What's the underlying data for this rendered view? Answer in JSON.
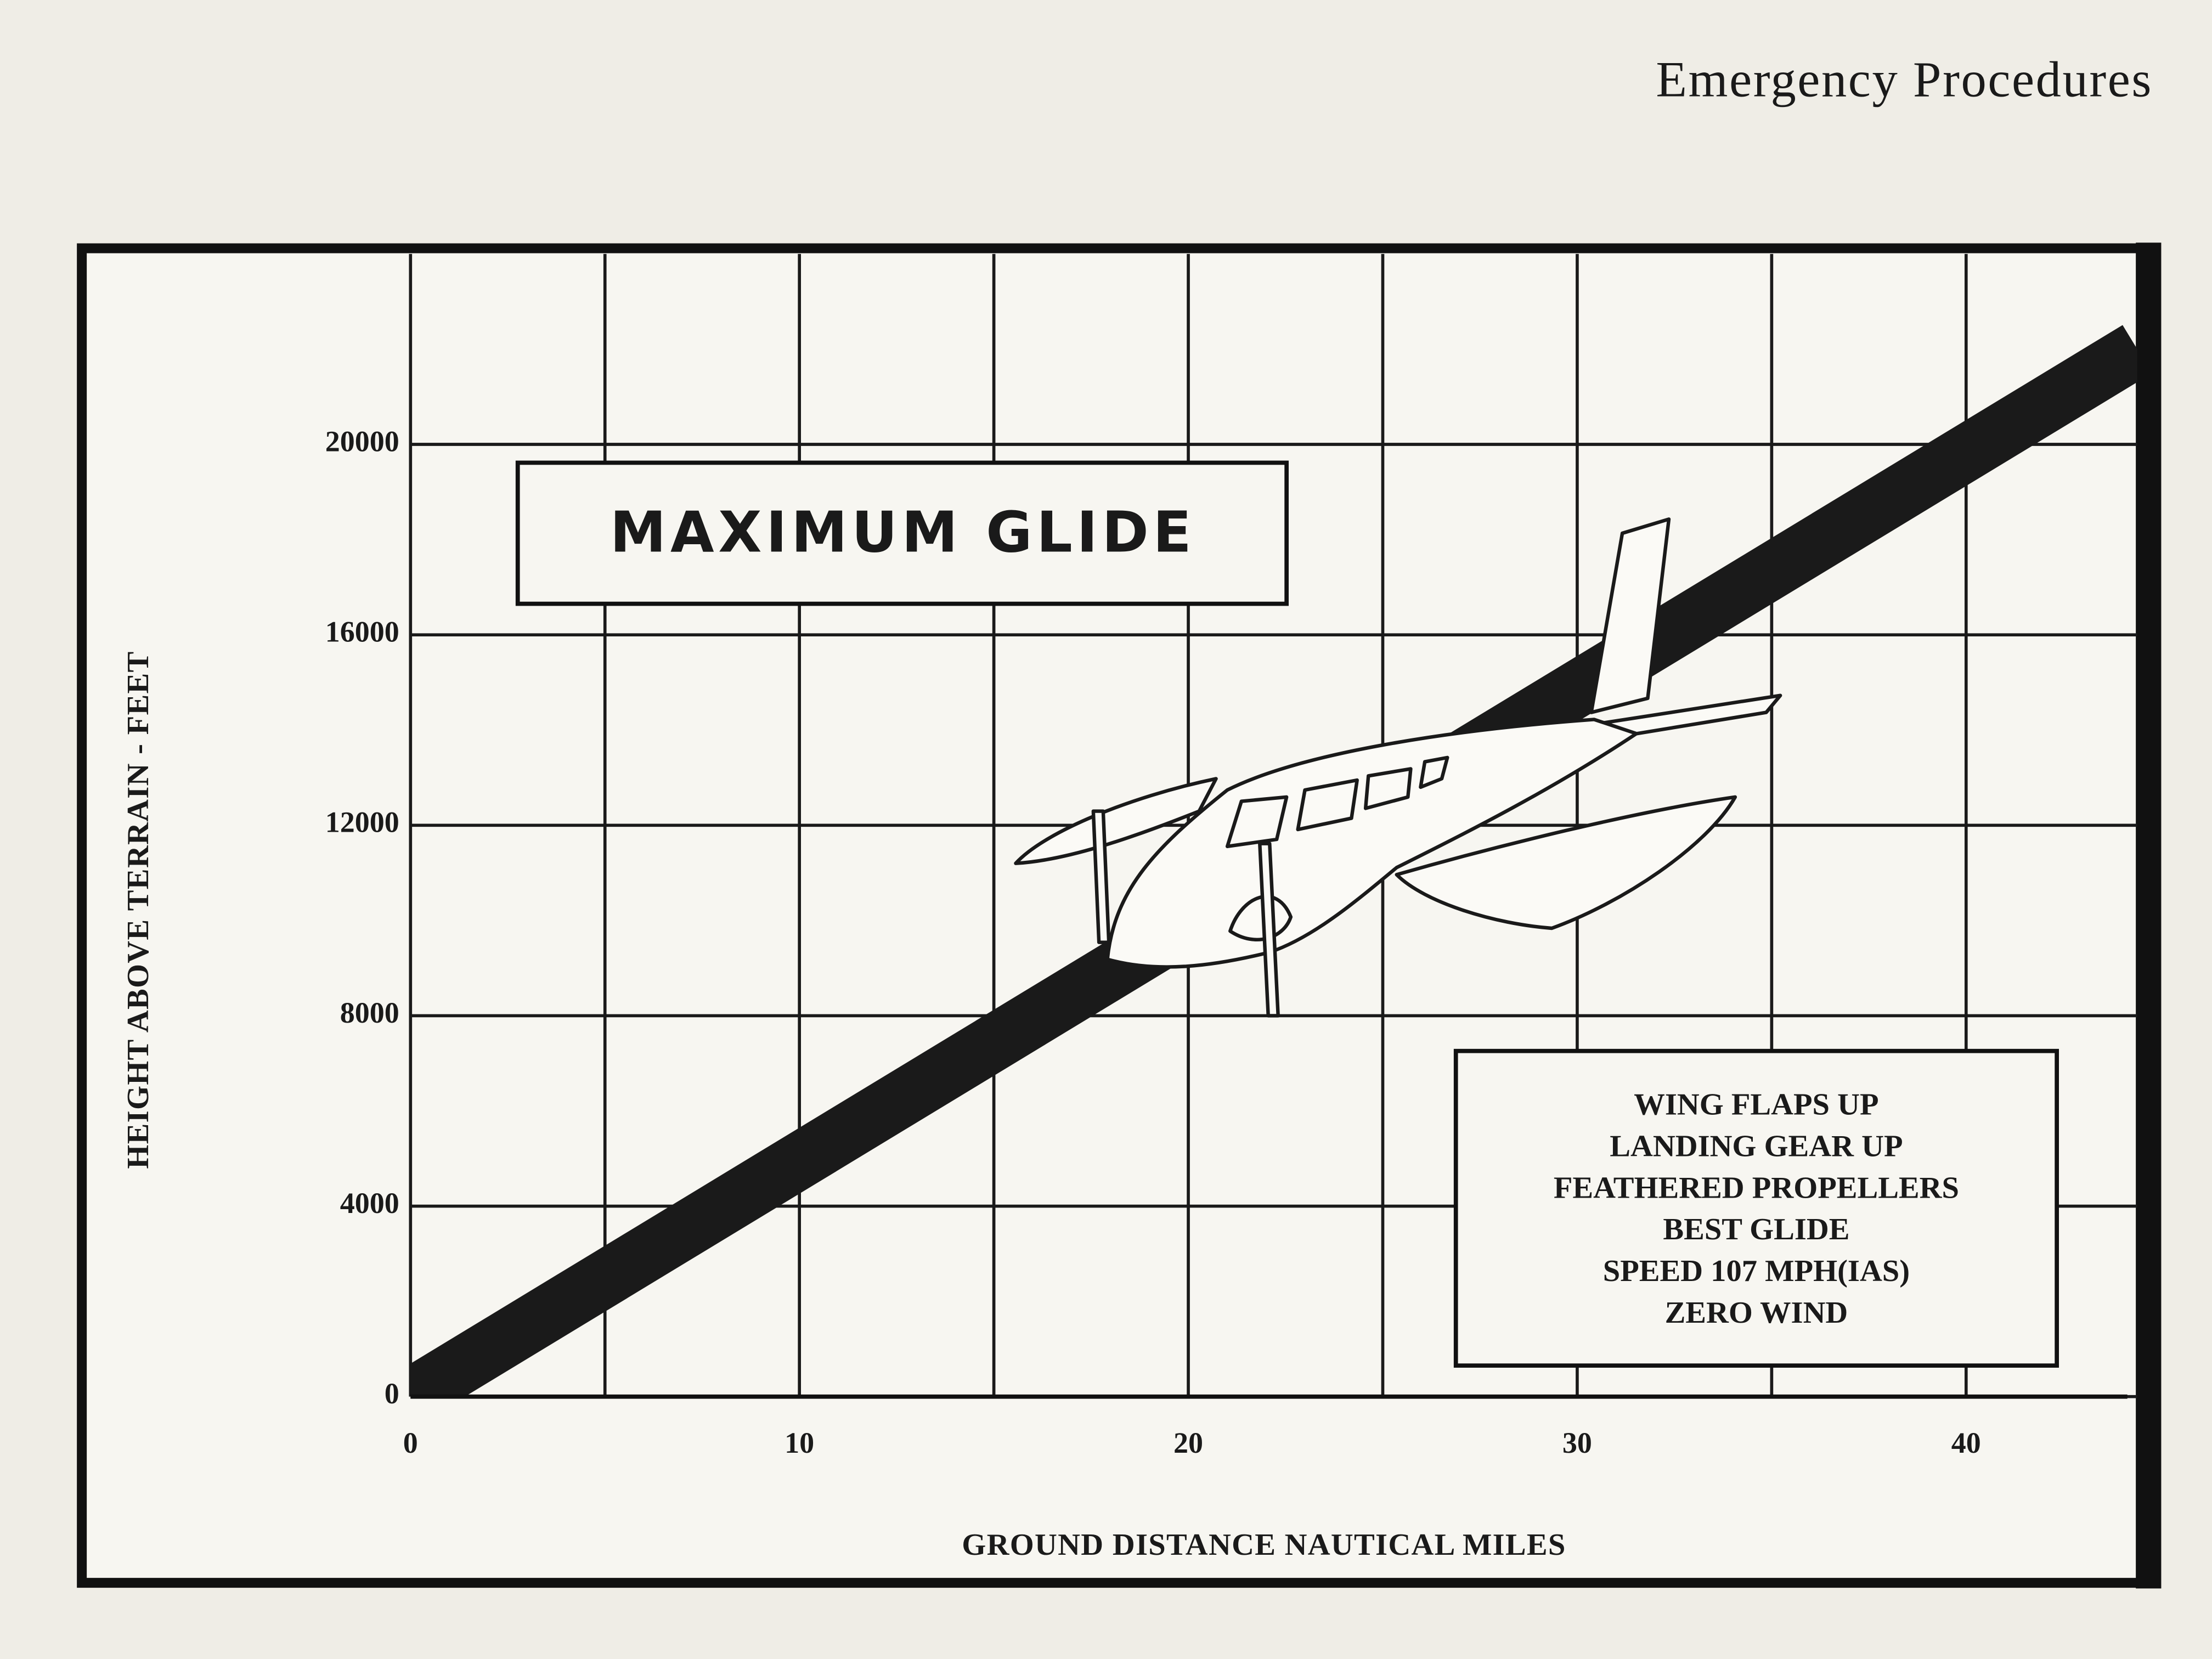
{
  "header": "Emergency Procedures",
  "chart_data": {
    "type": "line",
    "title": "MAXIMUM GLIDE",
    "x_label": "GROUND DISTANCE NAUTICAL MILES",
    "y_label": "HEIGHT ABOVE TERRAIN - FEET",
    "annotation": [
      "WING FLAPS UP",
      "LANDING GEAR UP",
      "FEATHERED PROPELLERS",
      "BEST GLIDE",
      "SPEED 107 MPH(IAS)",
      "ZERO WIND"
    ],
    "x": [
      0,
      44.4
    ],
    "series": [
      {
        "color": "#1a1a1a",
        "values": [
          0,
          22000
        ]
      }
    ],
    "xlim": [
      0,
      44.4
    ],
    "ylim": [
      0,
      24000
    ],
    "xticks": [
      0,
      10,
      20,
      30,
      40
    ],
    "x_minor_ticks": [
      5,
      15,
      25,
      35
    ],
    "yticks": [
      0,
      4000,
      8000,
      12000,
      16000,
      20000
    ],
    "grid": true
  }
}
